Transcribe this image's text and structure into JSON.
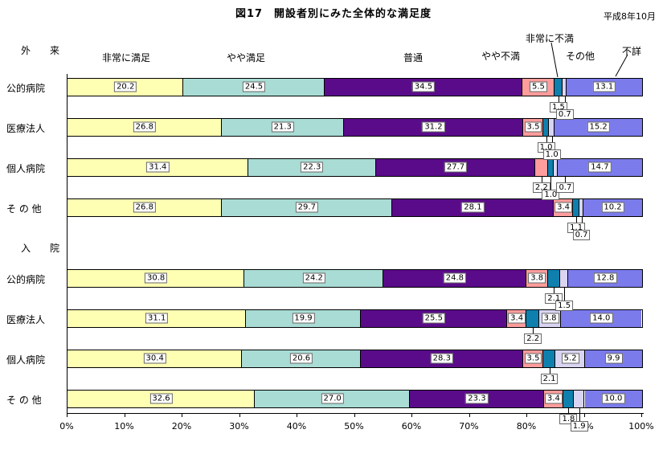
{
  "header": {
    "title": "図17　開設者別にみた全体的な満足度",
    "date": "平成8年10月"
  },
  "chart_data": {
    "type": "bar",
    "stacked": true,
    "orientation": "horizontal",
    "unit": "%",
    "xlim": [
      0,
      100
    ],
    "grid": false,
    "x_ticks": [
      "0%",
      "10%",
      "20%",
      "30%",
      "40%",
      "50%",
      "60%",
      "70%",
      "80%",
      "90%",
      "100%"
    ],
    "series_labels": [
      "非常に満足",
      "やや満足",
      "普通",
      "やや不満",
      "非常に不満",
      "その他",
      "不詳"
    ],
    "series_colors": [
      "#ffffb3",
      "#a8dcd4",
      "#5a0b8a",
      "#ff9c9c",
      "#0f7fae",
      "#d9d4f2",
      "#7b7bec"
    ],
    "groups": [
      {
        "label": "外　来",
        "rows": [
          {
            "label": "公的病院",
            "values": [
              "20.2",
              "24.5",
              "34.5",
              "5.5",
              "1.5",
              "0.7",
              "13.1"
            ],
            "below_label_series": [
              4,
              5
            ]
          },
          {
            "label": "医療法人",
            "values": [
              "26.8",
              "21.3",
              "31.2",
              "3.5",
              "1.0",
              "1.0",
              "15.2"
            ],
            "below_label_series": [
              4,
              5
            ]
          },
          {
            "label": "個人病院",
            "values": [
              "31.4",
              "22.3",
              "27.7",
              "2.2",
              "1.0",
              "0.7",
              "14.7"
            ],
            "below_label_series": [
              3,
              4,
              5
            ]
          },
          {
            "label": "そ の 他",
            "values": [
              "26.8",
              "29.7",
              "28.1",
              "3.4",
              "1.1",
              "0.7",
              "10.2"
            ],
            "below_label_series": [
              4,
              5
            ]
          }
        ]
      },
      {
        "label": "入　院",
        "rows": [
          {
            "label": "公的病院",
            "values": [
              "30.8",
              "24.2",
              "24.8",
              "3.8",
              "2.1",
              "1.5",
              "12.8"
            ],
            "below_label_series": [
              4,
              5
            ]
          },
          {
            "label": "医療法人",
            "values": [
              "31.1",
              "19.9",
              "25.5",
              "3.4",
              "2.2",
              "3.8",
              "14.0"
            ],
            "below_label_series": [
              4
            ]
          },
          {
            "label": "個人病院",
            "values": [
              "30.4",
              "20.6",
              "28.3",
              "3.5",
              "2.1",
              "5.2",
              "9.9"
            ],
            "below_label_series": [
              4
            ]
          },
          {
            "label": "そ の 他",
            "values": [
              "32.6",
              "27.0",
              "23.3",
              "3.4",
              "1.8",
              "1.9",
              "10.0"
            ],
            "below_label_series": [
              4,
              5
            ]
          }
        ]
      }
    ]
  }
}
